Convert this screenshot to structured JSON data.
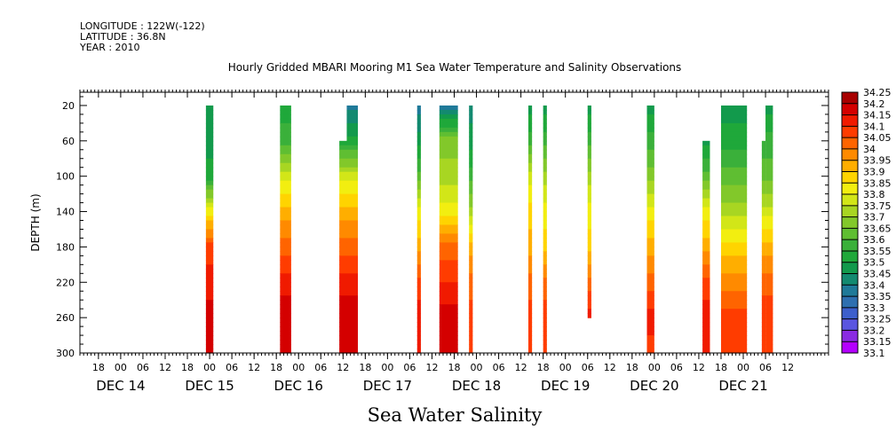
{
  "header": {
    "longitude": "LONGITUDE : 122W(-122)",
    "latitude": "LATITUDE : 36.8N",
    "year": "YEAR : 2010"
  },
  "chart_data": {
    "type": "heatmap",
    "title": "Hourly Gridded MBARI Mooring M1 Sea Water Temperature and Salinity Observations",
    "subtitle": "Sea Water Salinity",
    "ylabel": "DEPTH (m)",
    "xlabel": "",
    "y_axis": {
      "range": [
        5,
        300
      ],
      "inverted": true,
      "ticks": [
        20,
        60,
        100,
        140,
        180,
        220,
        260,
        300
      ]
    },
    "x_axis": {
      "range_hours": [
        "2010-12-13T13:00",
        "2010-12-21T23:00"
      ],
      "hour_ticks": [
        "2010-12-13T18:00",
        "2010-12-14T00:00",
        "2010-12-14T06:00",
        "2010-12-14T12:00",
        "2010-12-14T18:00",
        "2010-12-15T00:00",
        "2010-12-15T06:00",
        "2010-12-15T12:00",
        "2010-12-15T18:00",
        "2010-12-16T00:00",
        "2010-12-16T06:00",
        "2010-12-16T12:00",
        "2010-12-16T18:00",
        "2010-12-17T00:00",
        "2010-12-17T06:00",
        "2010-12-17T12:00",
        "2010-12-17T18:00",
        "2010-12-18T00:00",
        "2010-12-18T06:00",
        "2010-12-18T12:00",
        "2010-12-18T18:00",
        "2010-12-19T00:00",
        "2010-12-19T06:00",
        "2010-12-19T12:00",
        "2010-12-19T18:00",
        "2010-12-20T00:00",
        "2010-12-20T06:00",
        "2010-12-20T12:00",
        "2010-12-20T18:00",
        "2010-12-21T00:00",
        "2010-12-21T06:00",
        "2010-12-21T12:00"
      ],
      "hour_tick_labels": [
        "18",
        "00",
        "06",
        "12",
        "18",
        "00",
        "06",
        "12",
        "18",
        "00",
        "06",
        "12",
        "18",
        "00",
        "06",
        "12",
        "18",
        "00",
        "06",
        "12",
        "18",
        "00",
        "06",
        "12",
        "18",
        "00",
        "06",
        "12",
        "18",
        "00",
        "06",
        "12"
      ],
      "day_labels": [
        {
          "text": "DEC 14",
          "at": "2010-12-14T00:00"
        },
        {
          "text": "DEC 15",
          "at": "2010-12-15T00:00"
        },
        {
          "text": "DEC 16",
          "at": "2010-12-16T00:00"
        },
        {
          "text": "DEC 17",
          "at": "2010-12-17T00:00"
        },
        {
          "text": "DEC 18",
          "at": "2010-12-18T00:00"
        },
        {
          "text": "DEC 19",
          "at": "2010-12-19T00:00"
        },
        {
          "text": "DEC 20",
          "at": "2010-12-20T00:00"
        },
        {
          "text": "DEC 21",
          "at": "2010-12-21T00:00"
        }
      ]
    },
    "colorbar": {
      "levels": [
        "33.1",
        "33.15",
        "33.2",
        "33.25",
        "33.3",
        "33.35",
        "33.4",
        "33.45",
        "33.5",
        "33.55",
        "33.6",
        "33.65",
        "33.7",
        "33.75",
        "33.8",
        "33.85",
        "33.9",
        "33.95",
        "34",
        "34.05",
        "34.1",
        "34.15",
        "34.2",
        "34.25"
      ],
      "colors": [
        "#cc00ff",
        "#b400ff",
        "#8a2be2",
        "#5a55e0",
        "#3d5fcc",
        "#2e6fb0",
        "#1f7a99",
        "#138a70",
        "#129a4c",
        "#1fa83a",
        "#3ab03a",
        "#5fbe32",
        "#82c82a",
        "#a8d622",
        "#d2e618",
        "#f2ee10",
        "#ffd400",
        "#ffae00",
        "#ff8a00",
        "#ff6400",
        "#ff3c00",
        "#f01a00",
        "#d40000",
        "#a80000"
      ]
    },
    "depth_samples": [
      20,
      60,
      100,
      140,
      180,
      220,
      260,
      300
    ],
    "series": [
      {
        "start": "2010-12-14T23:00",
        "end": "2010-12-15T01:00",
        "salinity": [
          33.5,
          33.5,
          33.55,
          33.85,
          34.1,
          34.15,
          34.2,
          34.2
        ]
      },
      {
        "start": "2010-12-15T19:00",
        "end": "2010-12-15T22:00",
        "salinity": [
          33.55,
          33.6,
          33.8,
          33.95,
          34.05,
          34.15,
          34.22,
          34.2
        ]
      },
      {
        "start": "2010-12-16T11:00",
        "end": "2010-12-16T16:00",
        "salinity": [
          null,
          33.55,
          33.8,
          33.95,
          34.05,
          34.15,
          34.22,
          34.2
        ]
      },
      {
        "start": "2010-12-16T13:00",
        "end": "2010-12-16T16:00",
        "salinity": [
          33.4,
          33.55,
          33.8,
          33.95,
          34.05,
          34.15,
          34.22,
          34.2
        ]
      },
      {
        "start": "2010-12-17T08:00",
        "end": "2010-12-17T09:00",
        "salinity": [
          33.4,
          33.5,
          33.65,
          33.85,
          33.95,
          34.1,
          34.15,
          34.15
        ]
      },
      {
        "start": "2010-12-17T14:00",
        "end": "2010-12-17T19:00",
        "salinity": [
          33.4,
          33.7,
          33.75,
          33.85,
          34.05,
          34.12,
          34.2,
          34.2
        ]
      },
      {
        "start": "2010-12-17T22:00",
        "end": "2010-12-17T23:00",
        "salinity": [
          33.45,
          33.5,
          33.6,
          33.75,
          33.95,
          34.05,
          34.1,
          34.1
        ]
      },
      {
        "start": "2010-12-18T14:00",
        "end": "2010-12-18T15:00",
        "salinity": [
          33.5,
          33.6,
          33.8,
          33.9,
          33.95,
          34.05,
          34.1,
          34.1
        ]
      },
      {
        "start": "2010-12-18T18:00",
        "end": "2010-12-18T19:00",
        "salinity": [
          33.5,
          33.6,
          33.75,
          33.85,
          33.9,
          34.05,
          34.1,
          34.1
        ]
      },
      {
        "start": "2010-12-19T06:00",
        "end": "2010-12-19T07:00",
        "salinity": [
          33.5,
          33.6,
          33.75,
          33.85,
          33.9,
          34.05,
          34.15,
          null
        ]
      },
      {
        "start": "2010-12-19T22:00",
        "end": "2010-12-20T00:00",
        "salinity": [
          33.5,
          33.6,
          33.7,
          33.85,
          33.95,
          34.05,
          34.15,
          34.1
        ]
      },
      {
        "start": "2010-12-20T13:00",
        "end": "2010-12-20T15:00",
        "salinity": [
          null,
          33.5,
          33.65,
          33.85,
          33.95,
          34.1,
          34.15,
          34.15
        ]
      },
      {
        "start": "2010-12-20T18:00",
        "end": "2010-12-21T01:00",
        "salinity": [
          33.5,
          33.55,
          33.65,
          33.75,
          33.9,
          34.0,
          34.1,
          34.1
        ]
      },
      {
        "start": "2010-12-21T05:00",
        "end": "2010-12-21T06:00",
        "salinity": [
          null,
          33.6,
          33.65,
          33.8,
          33.95,
          34.05,
          34.12,
          34.12
        ]
      },
      {
        "start": "2010-12-21T06:00",
        "end": "2010-12-21T08:00",
        "salinity": [
          33.5,
          33.6,
          33.65,
          33.8,
          33.95,
          34.05,
          34.12,
          34.12
        ]
      }
    ]
  }
}
